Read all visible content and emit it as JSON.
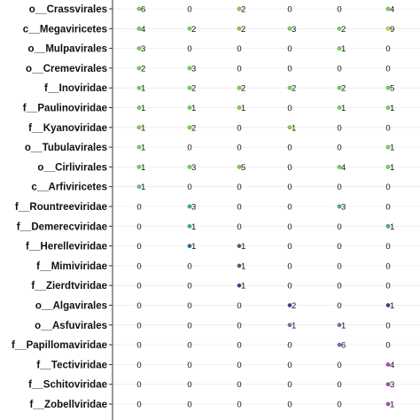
{
  "chart_data": {
    "type": "scatter",
    "rows": [
      "o__Crassvirales",
      "c__Megaviricetes",
      "o__Mulpavirales",
      "o__Cremevirales",
      "f__Inoviridae",
      "f__Paulinoviridae",
      "f__Kyanoviridae",
      "o__Tubulavirales",
      "o__Cirlivirales",
      "c__Arfiviricetes",
      "f__Rountreeviridae",
      "f__Demerecviridae",
      "f__Herelleviridae",
      "f__Mimiviridae",
      "f__Zierdtviridae",
      "o__Algavirales",
      "o__Asfuvirales",
      "f__Papillomaviridae",
      "f__Tectiviridae",
      "f__Schitoviridae",
      "f__Zobellviridae"
    ],
    "columns": 6,
    "values": [
      [
        6,
        0,
        2,
        0,
        0,
        4
      ],
      [
        4,
        2,
        2,
        3,
        2,
        9
      ],
      [
        3,
        0,
        0,
        0,
        1,
        0
      ],
      [
        2,
        3,
        0,
        0,
        0,
        0
      ],
      [
        1,
        2,
        2,
        2,
        2,
        5
      ],
      [
        1,
        1,
        1,
        0,
        1,
        1
      ],
      [
        1,
        2,
        0,
        1,
        0,
        0
      ],
      [
        1,
        0,
        0,
        0,
        0,
        1
      ],
      [
        1,
        3,
        5,
        0,
        4,
        1
      ],
      [
        1,
        0,
        0,
        0,
        0,
        0
      ],
      [
        0,
        3,
        0,
        0,
        3,
        0
      ],
      [
        0,
        1,
        0,
        0,
        0,
        1
      ],
      [
        0,
        1,
        1,
        0,
        0,
        0
      ],
      [
        0,
        0,
        1,
        0,
        0,
        0
      ],
      [
        0,
        0,
        1,
        0,
        0,
        0
      ],
      [
        0,
        0,
        0,
        2,
        0,
        1
      ],
      [
        0,
        0,
        0,
        1,
        1,
        0
      ],
      [
        0,
        0,
        0,
        0,
        6,
        0
      ],
      [
        0,
        0,
        0,
        0,
        0,
        4
      ],
      [
        0,
        0,
        0,
        0,
        0,
        3
      ],
      [
        0,
        0,
        0,
        0,
        0,
        1
      ]
    ],
    "point_colors": {
      "rows_1_to_9": "#7ad151",
      "rows_9_to_10": "#5fc0a4",
      "rows_11_to_12": "#35b779",
      "rows_13_to_14": "#31688e",
      "rows_15_to_16": "#443983",
      "rows_17_to_18": "#8a5fb5",
      "rows_19_to_21": "#a54bb5",
      "high_values": "#bddf26"
    },
    "grid": true,
    "legend": "none"
  }
}
